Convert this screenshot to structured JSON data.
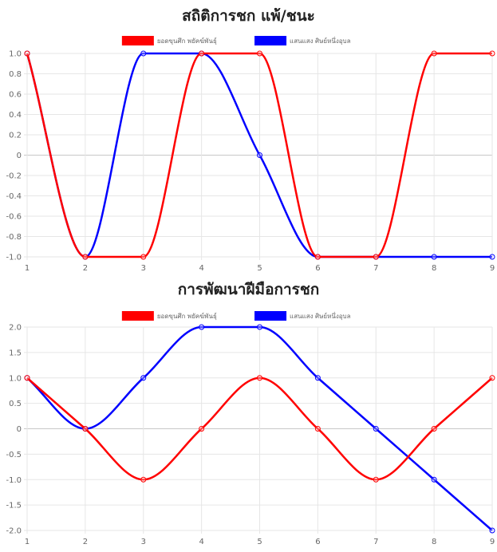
{
  "chart_data": [
    {
      "type": "line",
      "title": "สถิติการชก แพ้/ชนะ",
      "x": [
        1,
        2,
        3,
        4,
        5,
        6,
        7,
        8,
        9
      ],
      "ylim": [
        -1.0,
        1.0
      ],
      "yticks": [
        "1.0",
        "0.8",
        "0.6",
        "0.4",
        "0.2",
        "0",
        "-0.2",
        "-0.4",
        "-0.6",
        "-0.8",
        "-1.0"
      ],
      "ytick_values": [
        1.0,
        0.8,
        0.6,
        0.4,
        0.2,
        0,
        -0.2,
        -0.4,
        -0.6,
        -0.8,
        -1.0
      ],
      "grid": true,
      "legend": "top-center",
      "series": [
        {
          "name": "ยอดขุนศึก พยัคฆ์พันธุ์",
          "color": "#ff0000",
          "values": [
            1,
            -1,
            -1,
            1,
            1,
            -1,
            -1,
            1,
            1
          ]
        },
        {
          "name": "แสนแสง ศิษย์หนึ่งอุบล",
          "color": "#0000ff",
          "values": [
            1,
            -1,
            1,
            1,
            0,
            -1,
            -1,
            -1,
            -1
          ]
        }
      ]
    },
    {
      "type": "line",
      "title": "การพัฒนาฝีมือการชก",
      "x": [
        1,
        2,
        3,
        4,
        5,
        6,
        7,
        8,
        9
      ],
      "ylim": [
        -2.0,
        2.0
      ],
      "yticks": [
        "2.0",
        "1.5",
        "1.0",
        "0.5",
        "0",
        "-0.5",
        "-1.0",
        "-1.5",
        "-2.0"
      ],
      "ytick_values": [
        2.0,
        1.5,
        1.0,
        0.5,
        0,
        -0.5,
        -1.0,
        -1.5,
        -2.0
      ],
      "grid": true,
      "legend": "top-center",
      "series": [
        {
          "name": "ยอดขุนศึก พยัคฆ์พันธุ์",
          "color": "#ff0000",
          "values": [
            1,
            0,
            -1,
            0,
            1,
            0,
            -1,
            0,
            1
          ]
        },
        {
          "name": "แสนแสง ศิษย์หนึ่งอุบล",
          "color": "#0000ff",
          "values": [
            1,
            0,
            1,
            2,
            2,
            1,
            0,
            -1,
            -2
          ]
        }
      ]
    }
  ]
}
